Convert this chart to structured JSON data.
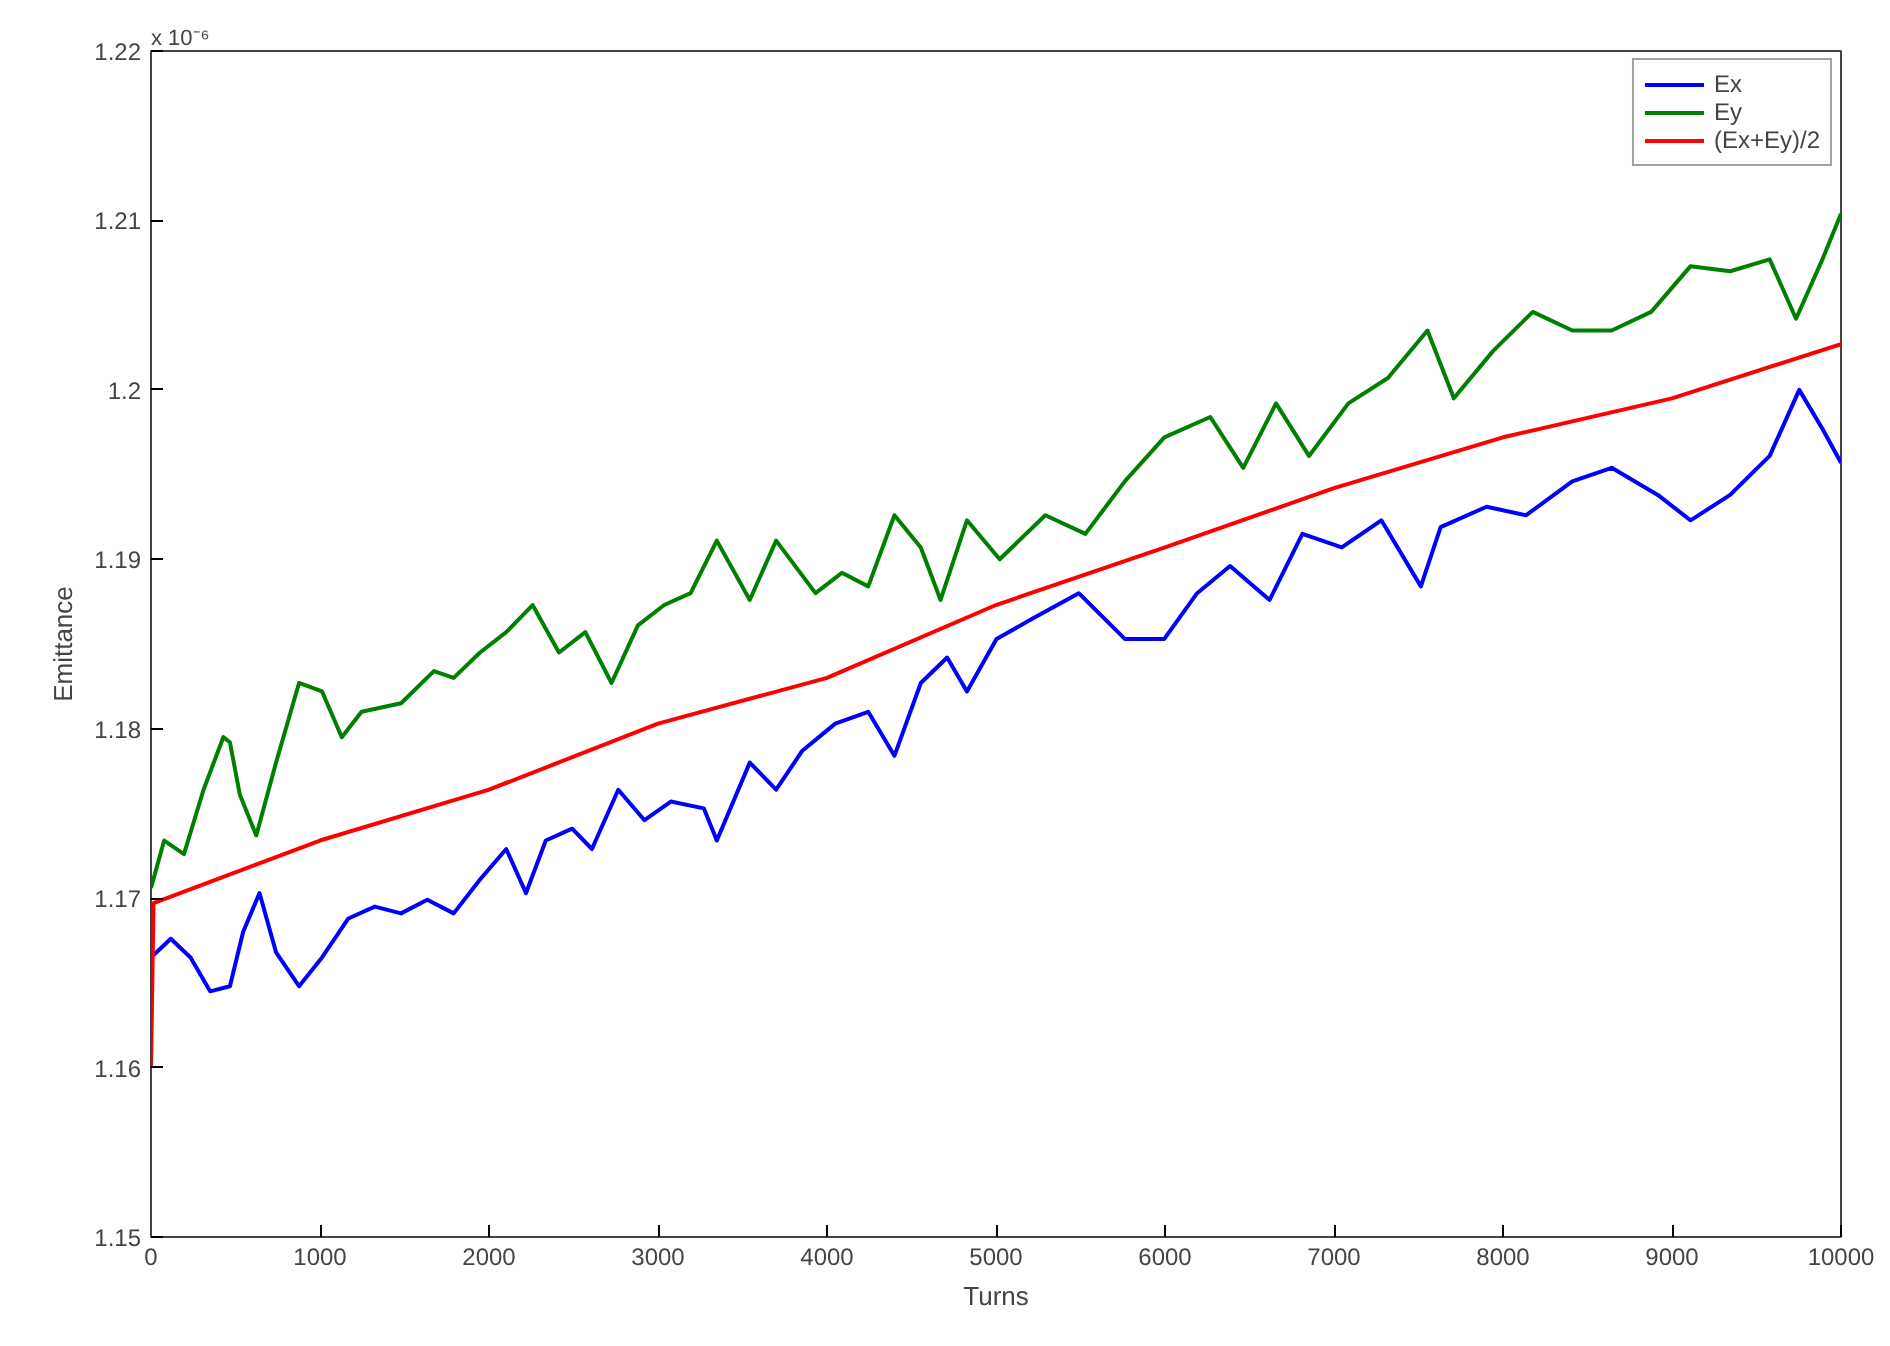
{
  "chart_data": {
    "type": "line",
    "xlabel": "Turns",
    "ylabel": "Emittance",
    "annotations": [
      "x 10⁻⁶"
    ],
    "xlim": [
      0,
      10000
    ],
    "xticks": [
      0,
      1000,
      2000,
      3000,
      4000,
      5000,
      6000,
      7000,
      8000,
      9000,
      10000
    ],
    "ylim": [
      1.15,
      1.22
    ],
    "yticks": [
      1.15,
      1.16,
      1.17,
      1.18,
      1.19,
      1.2,
      1.21,
      1.22
    ],
    "grid": false,
    "legend": "top right",
    "line_style": "solid",
    "marker": "none",
    "series": [
      {
        "name": "Ex",
        "color": "#0000ff",
        "x": [
          0,
          117,
          234,
          350,
          467,
          545,
          642,
          740,
          876,
          1012,
          1168,
          1324,
          1480,
          1635,
          1791,
          1947,
          2102,
          2219,
          2336,
          2492,
          2609,
          2765,
          2920,
          3076,
          3271,
          3348,
          3543,
          3699,
          3854,
          4049,
          4244,
          4399,
          4555,
          4711,
          4828,
          5003,
          5217,
          5490,
          5762,
          5996,
          6190,
          6385,
          6619,
          6813,
          7046,
          7280,
          7514,
          7631,
          7903,
          8137,
          8410,
          8643,
          8916,
          9110,
          9344,
          9578,
          9753,
          9890,
          10000
        ],
        "values": [
          1.1665,
          1.1676,
          1.1665,
          1.1645,
          1.1648,
          1.168,
          1.1703,
          1.1668,
          1.1648,
          1.1665,
          1.1688,
          1.1695,
          1.1691,
          1.1699,
          1.1691,
          1.1711,
          1.1729,
          1.1703,
          1.1734,
          1.1741,
          1.1729,
          1.1764,
          1.1746,
          1.1757,
          1.1753,
          1.1734,
          1.178,
          1.1764,
          1.1787,
          1.1803,
          1.181,
          1.1784,
          1.1827,
          1.1842,
          1.1822,
          1.1853,
          1.1865,
          1.188,
          1.1853,
          1.1853,
          1.188,
          1.1896,
          1.1876,
          1.1915,
          1.1907,
          1.1923,
          1.1884,
          1.1919,
          1.1931,
          1.1926,
          1.1946,
          1.1954,
          1.1938,
          1.1923,
          1.1938,
          1.1961,
          1.2,
          1.1977,
          1.1957
        ]
      },
      {
        "name": "Ey",
        "color": "#008000",
        "x": [
          0,
          78,
          195,
          311,
          428,
          467,
          526,
          623,
          740,
          876,
          1012,
          1129,
          1246,
          1480,
          1674,
          1791,
          1947,
          2102,
          2258,
          2414,
          2570,
          2725,
          2881,
          3037,
          3193,
          3348,
          3543,
          3699,
          3932,
          4088,
          4244,
          4399,
          4555,
          4672,
          4828,
          5022,
          5292,
          5529,
          5762,
          5996,
          6268,
          6463,
          6657,
          6852,
          7085,
          7319,
          7553,
          7709,
          7942,
          8176,
          8410,
          8643,
          8877,
          9110,
          9344,
          9578,
          9734,
          9890,
          10000
        ],
        "values": [
          1.1706,
          1.1734,
          1.1726,
          1.1764,
          1.1795,
          1.1792,
          1.1761,
          1.1737,
          1.178,
          1.1827,
          1.1822,
          1.1795,
          1.181,
          1.1815,
          1.1834,
          1.183,
          1.1845,
          1.1857,
          1.1873,
          1.1845,
          1.1857,
          1.1827,
          1.1861,
          1.1873,
          1.188,
          1.1911,
          1.1876,
          1.1911,
          1.188,
          1.1892,
          1.1884,
          1.1926,
          1.1907,
          1.1876,
          1.1923,
          1.19,
          1.1926,
          1.1915,
          1.1946,
          1.1972,
          1.1984,
          1.1954,
          1.1992,
          1.1961,
          1.1992,
          1.2007,
          1.2035,
          1.1995,
          1.2023,
          1.2046,
          1.2035,
          1.2035,
          1.2046,
          1.2073,
          1.207,
          1.2077,
          1.2042,
          1.2077,
          1.2104
        ]
      },
      {
        "name": "(Ex+Ey)/2",
        "color": "#ff0000",
        "x": [
          0,
          15,
          1000,
          2000,
          3000,
          4000,
          5000,
          6000,
          7000,
          8000,
          9000,
          10000
        ],
        "values": [
          1.16,
          1.1697,
          1.1734,
          1.1764,
          1.1803,
          1.183,
          1.1873,
          1.1907,
          1.1942,
          1.1972,
          1.1995,
          1.2027
        ]
      }
    ]
  }
}
